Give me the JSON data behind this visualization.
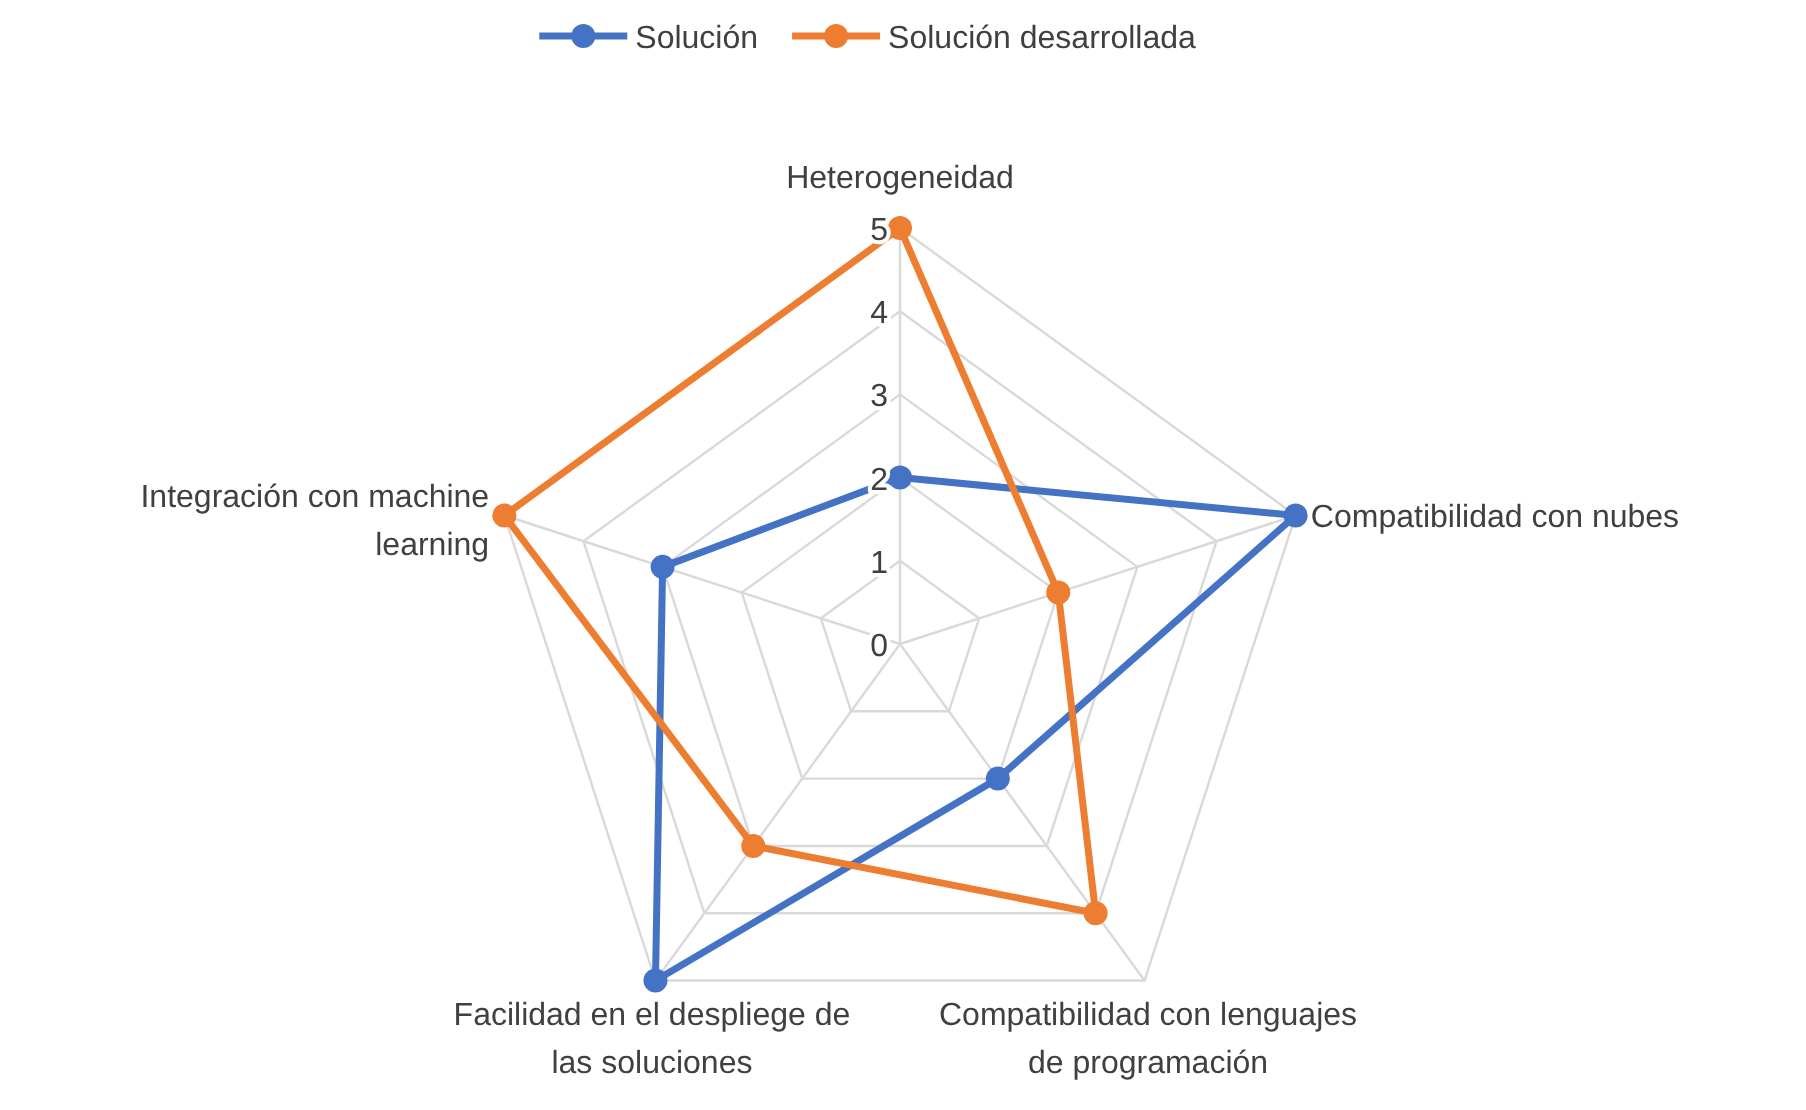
{
  "chart_data": {
    "type": "radar",
    "categories": [
      "Heterogeneidad",
      "Compatibilidad con nubes",
      "Compatibilidad con lenguajes de programación",
      "Facilidad en el despliege de las soluciones",
      "Integración con machine learning"
    ],
    "series": [
      {
        "name": "Solución",
        "color": "#4472c4",
        "values": [
          2,
          5,
          2,
          5,
          3
        ]
      },
      {
        "name": "Solución desarrollada",
        "color": "#ed7d31",
        "values": [
          5,
          2,
          4,
          3,
          5
        ]
      }
    ],
    "ylim": [
      0,
      5
    ],
    "yticks": [
      0,
      1,
      2,
      3,
      4,
      5
    ],
    "grid": true,
    "legend": "top",
    "marker": "circle"
  }
}
